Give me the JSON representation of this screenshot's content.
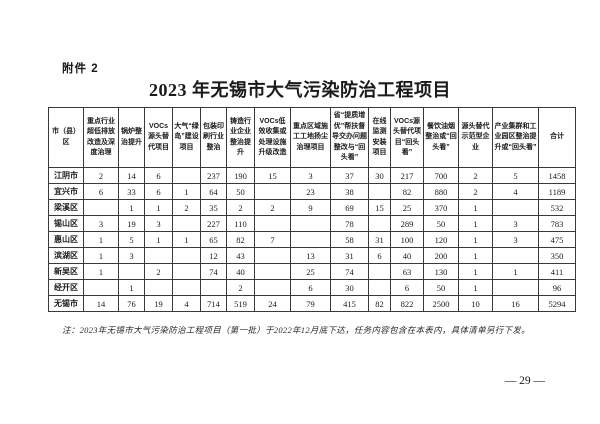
{
  "attachment_label": "附件 2",
  "title": "2023 年无锡市大气污染防治工程项目",
  "table": {
    "columns": [
      "市（县）区",
      "重点行业超低排放改造及深度治理",
      "锅炉整治提升",
      "VOCs源头替代项目",
      "大气“绿岛”建设项目",
      "包装印刷行业整治",
      "铸造行业企业整治提升",
      "VOCs低效收集或处理设施升级改造",
      "重点区域施工工地扬尘治理项目",
      "省“提质增优”帮扶督导交办问题整改与“回头看”",
      "在线监测安装项目",
      "VOCs源头替代项目“回头看”",
      "餐饮油烟整治或“回头看”",
      "源头替代示范型企业",
      "产业集群和工业园区整治提升或“回头看”",
      "合计"
    ],
    "rows": [
      [
        "江阴市",
        "2",
        "14",
        "6",
        "",
        "237",
        "190",
        "15",
        "3",
        "37",
        "30",
        "217",
        "700",
        "2",
        "5",
        "1458"
      ],
      [
        "宜兴市",
        "6",
        "33",
        "6",
        "1",
        "64",
        "50",
        "",
        "23",
        "38",
        "",
        "82",
        "880",
        "2",
        "4",
        "1189"
      ],
      [
        "梁溪区",
        "",
        "1",
        "1",
        "2",
        "35",
        "2",
        "2",
        "9",
        "69",
        "15",
        "25",
        "370",
        "1",
        "",
        "532"
      ],
      [
        "锡山区",
        "3",
        "19",
        "3",
        "",
        "227",
        "110",
        "",
        "",
        "78",
        "",
        "289",
        "50",
        "1",
        "3",
        "783"
      ],
      [
        "惠山区",
        "1",
        "5",
        "1",
        "1",
        "65",
        "82",
        "7",
        "",
        "58",
        "31",
        "100",
        "120",
        "1",
        "3",
        "475"
      ],
      [
        "滨湖区",
        "1",
        "3",
        "",
        "",
        "12",
        "43",
        "",
        "13",
        "31",
        "6",
        "40",
        "200",
        "1",
        "",
        "350"
      ],
      [
        "新吴区",
        "1",
        "",
        "2",
        "",
        "74",
        "40",
        "",
        "25",
        "74",
        "",
        "63",
        "130",
        "1",
        "1",
        "411"
      ],
      [
        "经开区",
        "",
        "1",
        "",
        "",
        "",
        "2",
        "",
        "6",
        "30",
        "",
        "6",
        "50",
        "1",
        "",
        "96"
      ],
      [
        "无锡市",
        "14",
        "76",
        "19",
        "4",
        "714",
        "519",
        "24",
        "79",
        "415",
        "82",
        "822",
        "2500",
        "10",
        "16",
        "5294"
      ]
    ]
  },
  "footnote": "注：2023年无锡市大气污染防治工程项目（第一批）于2022年12月底下达，任务内容包含在本表内，具体清单另行下发。",
  "page_number": "— 29 —"
}
